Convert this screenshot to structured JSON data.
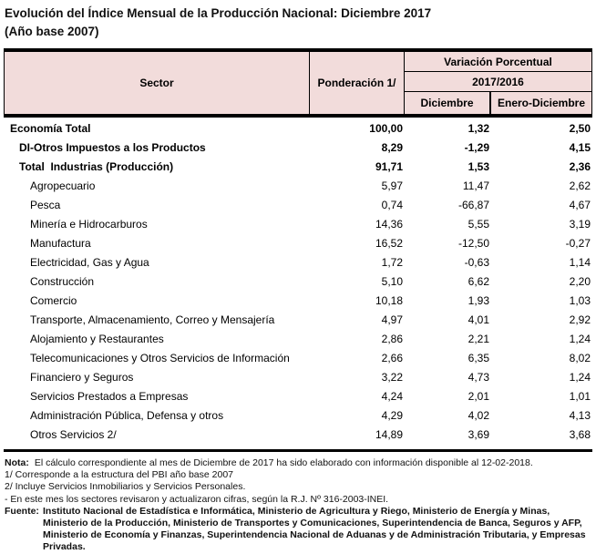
{
  "title": {
    "line1": "Evolución del Índice Mensual de la Producción Nacional: Diciembre 2017",
    "line2": "(Año base 2007)"
  },
  "colors": {
    "header_fill": "#F2DCDB",
    "border": "#000000",
    "text": "#000000"
  },
  "table": {
    "header": {
      "sector": "Sector",
      "ponderacion": "Ponderación 1/",
      "variacion": "Variación Porcentual",
      "periodo": "2017/2016",
      "mes": "Diciembre",
      "acumulado": "Enero-Diciembre"
    },
    "rows": [
      {
        "sector": "Economía Total",
        "ponderacion": "100,00",
        "diciembre": "1,32",
        "enero_diciembre": "2,50"
      },
      {
        "sector": "DI-Otros Impuestos a los Productos",
        "ponderacion": "8,29",
        "diciembre": "-1,29",
        "enero_diciembre": "4,15"
      },
      {
        "sector": "Total  Industrias (Producción)",
        "ponderacion": "91,71",
        "diciembre": "1,53",
        "enero_diciembre": "2,36"
      },
      {
        "sector": "Agropecuario",
        "ponderacion": "5,97",
        "diciembre": "11,47",
        "enero_diciembre": "2,62"
      },
      {
        "sector": "Pesca",
        "ponderacion": "0,74",
        "diciembre": "-66,87",
        "enero_diciembre": "4,67"
      },
      {
        "sector": "Minería e Hidrocarburos",
        "ponderacion": "14,36",
        "diciembre": "5,55",
        "enero_diciembre": "3,19"
      },
      {
        "sector": "Manufactura",
        "ponderacion": "16,52",
        "diciembre": "-12,50",
        "enero_diciembre": "-0,27"
      },
      {
        "sector": "Electricidad, Gas y Agua",
        "ponderacion": "1,72",
        "diciembre": "-0,63",
        "enero_diciembre": "1,14"
      },
      {
        "sector": "Construcción",
        "ponderacion": "5,10",
        "diciembre": "6,62",
        "enero_diciembre": "2,20"
      },
      {
        "sector": "Comercio",
        "ponderacion": "10,18",
        "diciembre": "1,93",
        "enero_diciembre": "1,03"
      },
      {
        "sector": "Transporte, Almacenamiento, Correo y Mensajería",
        "ponderacion": "4,97",
        "diciembre": "4,01",
        "enero_diciembre": "2,92"
      },
      {
        "sector": "Alojamiento y Restaurantes",
        "ponderacion": "2,86",
        "diciembre": "2,21",
        "enero_diciembre": "1,24"
      },
      {
        "sector": "Telecomunicaciones y Otros Servicios de Información",
        "ponderacion": "2,66",
        "diciembre": "6,35",
        "enero_diciembre": "8,02"
      },
      {
        "sector": "Financiero y Seguros",
        "ponderacion": "3,22",
        "diciembre": "4,73",
        "enero_diciembre": "1,24"
      },
      {
        "sector": "Servicios Prestados a Empresas",
        "ponderacion": "4,24",
        "diciembre": "2,01",
        "enero_diciembre": "1,01"
      },
      {
        "sector": "Administración Pública, Defensa y otros",
        "ponderacion": "4,29",
        "diciembre": "4,02",
        "enero_diciembre": "4,13"
      },
      {
        "sector": "Otros Servicios 2/",
        "ponderacion": "14,89",
        "diciembre": "3,69",
        "enero_diciembre": "3,68"
      }
    ]
  },
  "footer": {
    "nota_label": "Nota:",
    "nota_text": "El cálculo correspondiente al mes de Diciembre de 2017 ha sido elaborado con información disponible al 12-02-2018.",
    "footnote1": "1/ Corresponde a la estructura del PBI año base 2007",
    "footnote2": "2/ Incluye Servicios Inmobiliarios y Servicios Personales.",
    "footnote3": "- En este mes los sectores revisaron y actualizaron cifras, según la R.J. Nº 316-2003-INEI.",
    "fuente_label": "Fuente:",
    "fuente_line1": "Instituto Nacional de Estadística e Informática, Ministerio de Agricultura y Riego, Ministerio de Energía y Minas,",
    "fuente_line2": "Ministerio de la Producción, Ministerio de Transportes y Comunicaciones, Superintendencia de Banca, Seguros y AFP,",
    "fuente_line3": "Ministerio de Economía y Finanzas, Superintendencia Nacional de Aduanas y de Administración Tributaria, y Empresas Privadas."
  }
}
